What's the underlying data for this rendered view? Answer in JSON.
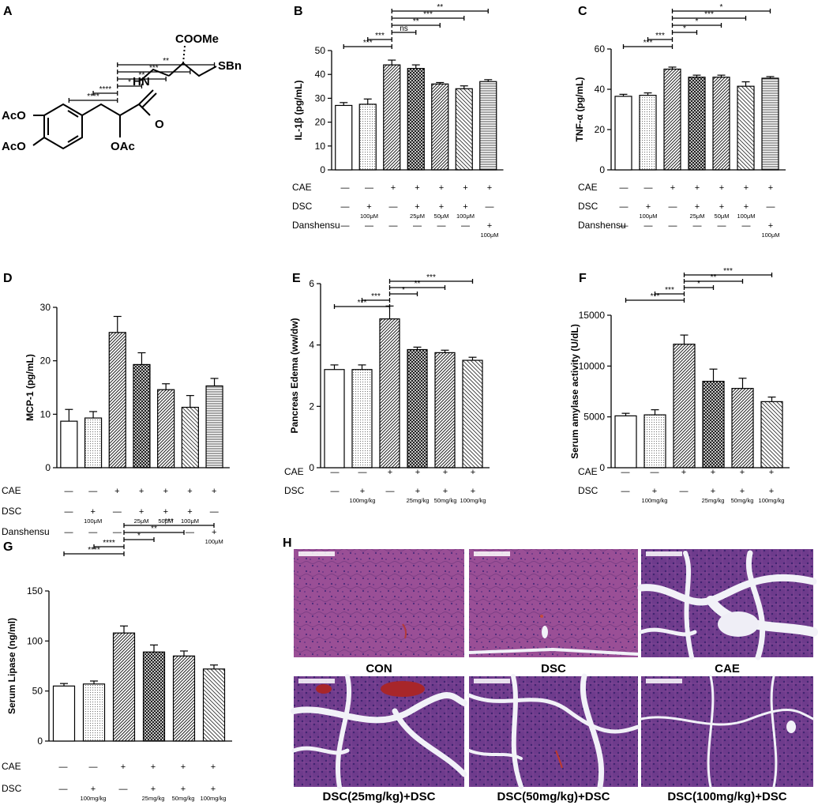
{
  "chem": {
    "letter": "A",
    "labels": [
      "COOMe",
      "HN",
      "SBn",
      "O",
      "AcO",
      "AcO",
      "OAc"
    ]
  },
  "histology": {
    "letter": "H",
    "captions": [
      "CON",
      "DSC",
      "CAE",
      "DSC(25mg/kg)+DSC",
      "DSC(50mg/kg)+DSC",
      "DSC(100mg/kg)+DSC"
    ],
    "colors": {
      "normal_tissue": "#9a4f96",
      "lobule_tissue": "#6e3b8c",
      "space": "#f2f2f8"
    }
  },
  "chart_data": [
    {
      "type": "bar",
      "letter": "B",
      "ylabel": "IL-1β (pg/mL)",
      "ylim": [
        0,
        50
      ],
      "yticks": [
        0,
        10,
        20,
        30,
        40,
        50
      ],
      "categories": [
        "1",
        "2",
        "3",
        "4",
        "5",
        "6",
        "7"
      ],
      "values": [
        27,
        27.5,
        44,
        42.5,
        36,
        34,
        37
      ],
      "errors": [
        1.2,
        2.2,
        2.0,
        1.5,
        0.6,
        1.2,
        0.8
      ],
      "patterns": [
        "none",
        "dots",
        "diag",
        "xhatch",
        "diag",
        "back",
        "horiz"
      ],
      "rows": [
        {
          "label": "CAE",
          "cells": [
            "—",
            "—",
            "+",
            "+",
            "+",
            "+",
            "+"
          ],
          "sub": [
            "",
            "",
            "",
            "",
            "",
            "",
            ""
          ]
        },
        {
          "label": "DSC",
          "cells": [
            "—",
            "+",
            "—",
            "+",
            "+",
            "+",
            "—"
          ],
          "sub": [
            "",
            "100μM",
            "",
            "25μM",
            "50μM",
            "100μM",
            ""
          ]
        },
        {
          "label": "Danshensu",
          "cells": [
            "—",
            "—",
            "—",
            "—",
            "—",
            "—",
            "+"
          ],
          "sub": [
            "",
            "",
            "",
            "",
            "",
            "",
            "100μM"
          ]
        }
      ],
      "sig": [
        {
          "from": 0,
          "to": 2,
          "text": "***"
        },
        {
          "from": 1,
          "to": 2,
          "text": "***"
        },
        {
          "from": 2,
          "to": 3,
          "text": "ns"
        },
        {
          "from": 2,
          "to": 4,
          "text": "**"
        },
        {
          "from": 2,
          "to": 5,
          "text": "***"
        },
        {
          "from": 2,
          "to": 6,
          "text": "**"
        }
      ]
    },
    {
      "type": "bar",
      "letter": "C",
      "ylabel": "TNF-α (pg/mL)",
      "ylim": [
        0,
        60
      ],
      "yticks": [
        0,
        20,
        40,
        60
      ],
      "categories": [
        "1",
        "2",
        "3",
        "4",
        "5",
        "6",
        "7"
      ],
      "values": [
        36.5,
        37,
        50,
        46,
        46,
        41.5,
        45.5
      ],
      "errors": [
        1.0,
        1.2,
        1.0,
        1.0,
        1.0,
        2.2,
        0.8
      ],
      "patterns": [
        "none",
        "dots",
        "diag",
        "xhatch",
        "diag",
        "back",
        "horiz"
      ],
      "rows": [
        {
          "label": "CAE",
          "cells": [
            "—",
            "—",
            "+",
            "+",
            "+",
            "+",
            "+"
          ],
          "sub": [
            "",
            "",
            "",
            "",
            "",
            "",
            ""
          ]
        },
        {
          "label": "DSC",
          "cells": [
            "—",
            "+",
            "—",
            "+",
            "+",
            "+",
            "—"
          ],
          "sub": [
            "",
            "100μM",
            "",
            "25μM",
            "50μM",
            "100μM",
            ""
          ]
        },
        {
          "label": "Danshensu",
          "cells": [
            "—",
            "—",
            "—",
            "—",
            "—",
            "—",
            "+"
          ],
          "sub": [
            "",
            "",
            "",
            "",
            "",
            "",
            "100μM"
          ]
        }
      ],
      "sig": [
        {
          "from": 0,
          "to": 2,
          "text": "***"
        },
        {
          "from": 1,
          "to": 2,
          "text": "***"
        },
        {
          "from": 2,
          "to": 3,
          "text": "*"
        },
        {
          "from": 2,
          "to": 4,
          "text": "*"
        },
        {
          "from": 2,
          "to": 5,
          "text": "***"
        },
        {
          "from": 2,
          "to": 6,
          "text": "*"
        }
      ]
    },
    {
      "type": "bar",
      "letter": "D",
      "ylabel": "MCP-1 (pg/mL)",
      "ylim": [
        0,
        30
      ],
      "yticks": [
        0,
        10,
        20,
        30
      ],
      "categories": [
        "1",
        "2",
        "3",
        "4",
        "5",
        "6",
        "7"
      ],
      "values": [
        8.7,
        9.3,
        25.3,
        19.3,
        14.6,
        11.3,
        15.3
      ],
      "errors": [
        2.2,
        1.2,
        3.0,
        2.2,
        1.1,
        2.2,
        1.4
      ],
      "patterns": [
        "none",
        "dots",
        "diag",
        "xhatch",
        "diag",
        "back",
        "horiz"
      ],
      "rows": [
        {
          "label": "CAE",
          "cells": [
            "—",
            "—",
            "+",
            "+",
            "+",
            "+",
            "+"
          ],
          "sub": [
            "",
            "",
            "",
            "",
            "",
            "",
            ""
          ]
        },
        {
          "label": "DSC",
          "cells": [
            "—",
            "+",
            "—",
            "+",
            "+",
            "+",
            "—"
          ],
          "sub": [
            "",
            "100μM",
            "",
            "25μM",
            "50μM",
            "100μM",
            ""
          ]
        },
        {
          "label": "Danshensu",
          "cells": [
            "—",
            "—",
            "—",
            "—",
            "—",
            "—",
            "+"
          ],
          "sub": [
            "",
            "",
            "",
            "",
            "",
            "",
            "100μM"
          ]
        }
      ],
      "sig": [
        {
          "from": 0,
          "to": 2,
          "text": "****"
        },
        {
          "from": 1,
          "to": 2,
          "text": "****"
        },
        {
          "from": 2,
          "to": 3,
          "text": "*"
        },
        {
          "from": 2,
          "to": 4,
          "text": "**"
        },
        {
          "from": 2,
          "to": 5,
          "text": "***"
        },
        {
          "from": 2,
          "to": 6,
          "text": "**"
        }
      ]
    },
    {
      "type": "bar",
      "letter": "E",
      "ylabel": "Pancreas Edema (ww/dw)",
      "ylim": [
        0,
        6
      ],
      "yticks": [
        0,
        2,
        4,
        6
      ],
      "categories": [
        "1",
        "2",
        "3",
        "4",
        "5",
        "6"
      ],
      "values": [
        3.2,
        3.2,
        4.85,
        3.85,
        3.75,
        3.5
      ],
      "errors": [
        0.15,
        0.15,
        0.42,
        0.08,
        0.08,
        0.1
      ],
      "patterns": [
        "none",
        "dots",
        "diag",
        "xhatch",
        "diag",
        "back"
      ],
      "rows": [
        {
          "label": "CAE",
          "cells": [
            "—",
            "—",
            "+",
            "+",
            "+",
            "+"
          ],
          "sub": [
            "",
            "",
            "",
            "",
            "",
            ""
          ]
        },
        {
          "label": "DSC",
          "cells": [
            "—",
            "+",
            "—",
            "+",
            "+",
            "+"
          ],
          "sub": [
            "",
            "100mg/kg",
            "",
            "25mg/kg",
            "50mg/kg",
            "100mg/kg"
          ]
        }
      ],
      "sig": [
        {
          "from": 0,
          "to": 2,
          "text": "***"
        },
        {
          "from": 1,
          "to": 2,
          "text": "***"
        },
        {
          "from": 2,
          "to": 3,
          "text": "*"
        },
        {
          "from": 2,
          "to": 4,
          "text": "**"
        },
        {
          "from": 2,
          "to": 5,
          "text": "***"
        }
      ]
    },
    {
      "type": "bar",
      "letter": "F",
      "ylabel": "Serum amylase activity (U/dL)",
      "ylim": [
        0,
        15000
      ],
      "yticks": [
        0,
        5000,
        10000,
        15000
      ],
      "categories": [
        "1",
        "2",
        "3",
        "4",
        "5",
        "6"
      ],
      "values": [
        5100,
        5200,
        12150,
        8500,
        7800,
        6500
      ],
      "errors": [
        250,
        500,
        900,
        1200,
        1000,
        450
      ],
      "patterns": [
        "none",
        "dots",
        "diag",
        "xhatch",
        "diag",
        "back"
      ],
      "rows": [
        {
          "label": "CAE",
          "cells": [
            "—",
            "—",
            "+",
            "+",
            "+",
            "+"
          ],
          "sub": [
            "",
            "",
            "",
            "",
            "",
            ""
          ]
        },
        {
          "label": "DSC",
          "cells": [
            "—",
            "+",
            "—",
            "+",
            "+",
            "+"
          ],
          "sub": [
            "",
            "100mg/kg",
            "",
            "25mg/kg",
            "50mg/kg",
            "100mg/kg"
          ]
        }
      ],
      "sig": [
        {
          "from": 0,
          "to": 2,
          "text": "***"
        },
        {
          "from": 1,
          "to": 2,
          "text": "***"
        },
        {
          "from": 2,
          "to": 3,
          "text": "*"
        },
        {
          "from": 2,
          "to": 4,
          "text": "**"
        },
        {
          "from": 2,
          "to": 5,
          "text": "***"
        }
      ]
    },
    {
      "type": "bar",
      "letter": "G",
      "ylabel": "Serum Lipase (ng/ml)",
      "ylim": [
        0,
        150
      ],
      "yticks": [
        0,
        50,
        100,
        150
      ],
      "categories": [
        "1",
        "2",
        "3",
        "4",
        "5",
        "6"
      ],
      "values": [
        55,
        57,
        108,
        89,
        85,
        72
      ],
      "errors": [
        2.5,
        3,
        7,
        7,
        5,
        4
      ],
      "patterns": [
        "none",
        "dots",
        "diag",
        "xhatch",
        "diag",
        "back"
      ],
      "rows": [
        {
          "label": "CAE",
          "cells": [
            "—",
            "—",
            "+",
            "+",
            "+",
            "+"
          ],
          "sub": [
            "",
            "",
            "",
            "",
            "",
            ""
          ]
        },
        {
          "label": "DSC",
          "cells": [
            "—",
            "+",
            "—",
            "+",
            "+",
            "+"
          ],
          "sub": [
            "",
            "100mg/kg",
            "",
            "25mg/kg",
            "50mg/kg",
            "100mg/kg"
          ]
        }
      ],
      "sig": [
        {
          "from": 0,
          "to": 2,
          "text": "****"
        },
        {
          "from": 1,
          "to": 2,
          "text": "****"
        },
        {
          "from": 2,
          "to": 3,
          "text": "*"
        },
        {
          "from": 2,
          "to": 4,
          "text": "**"
        },
        {
          "from": 2,
          "to": 5,
          "text": "***"
        }
      ]
    }
  ]
}
